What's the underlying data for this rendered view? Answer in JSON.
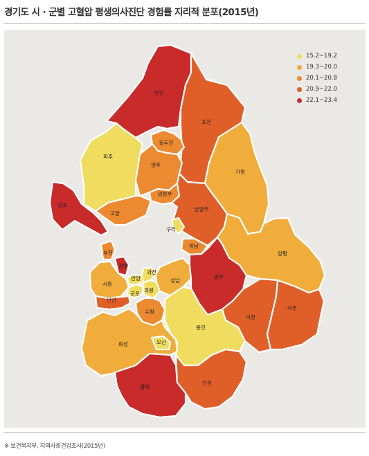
{
  "title": "경기도 시 · 군별 고혈압 평생의사진단 경험률 지리적 분포(2015년)",
  "source": "※ 보건복지부, 지역사회건강조사(2015년)",
  "legend": [
    {
      "label": "15.2~19.2",
      "color": "#f0dc5f"
    },
    {
      "label": "19.3~20.0",
      "color": "#f0ad3c"
    },
    {
      "label": "20.1~20.8",
      "color": "#ec8a32"
    },
    {
      "label": "20.9~22.0",
      "color": "#e05f29"
    },
    {
      "label": "22.1~23.4",
      "color": "#c92a2a"
    }
  ],
  "regions": [
    {
      "name": "연천",
      "class": "22.1~23.4",
      "color": "#c92a2a"
    },
    {
      "name": "포천",
      "class": "20.9~22.0",
      "color": "#e05f29"
    },
    {
      "name": "파주",
      "class": "15.2~19.2",
      "color": "#f0dc5f"
    },
    {
      "name": "동두천",
      "class": "20.1~20.8",
      "color": "#ec8a32"
    },
    {
      "name": "양주",
      "class": "20.1~20.8",
      "color": "#ec8a32"
    },
    {
      "name": "가평",
      "class": "19.3~20.0",
      "color": "#f0ad3c"
    },
    {
      "name": "의정부",
      "class": "20.1~20.8",
      "color": "#ec8a32"
    },
    {
      "name": "김포",
      "class": "22.1~23.4",
      "color": "#c92a2a"
    },
    {
      "name": "고양",
      "class": "20.1~20.8",
      "color": "#ec8a32"
    },
    {
      "name": "남양주",
      "class": "20.9~22.0",
      "color": "#e05f29"
    },
    {
      "name": "구리",
      "class": "15.2~19.2",
      "color": "#f0dc5f"
    },
    {
      "name": "하남",
      "class": "20.1~20.8",
      "color": "#ec8a32"
    },
    {
      "name": "양평",
      "class": "19.3~20.0",
      "color": "#f0ad3c"
    },
    {
      "name": "부천",
      "class": "20.1~20.8",
      "color": "#ec8a32"
    },
    {
      "name": "광명",
      "class": "22.1~23.4",
      "color": "#c92a2a"
    },
    {
      "name": "시흥",
      "class": "19.3~20.0",
      "color": "#f0ad3c"
    },
    {
      "name": "안양",
      "class": "15.2~19.2",
      "color": "#f0dc5f"
    },
    {
      "name": "과천",
      "class": "15.2~19.2",
      "color": "#f0dc5f"
    },
    {
      "name": "성남",
      "class": "19.3~20.0",
      "color": "#f0ad3c"
    },
    {
      "name": "광주",
      "class": "22.1~23.4",
      "color": "#c92a2a"
    },
    {
      "name": "군포",
      "class": "15.2~19.2",
      "color": "#f0dc5f"
    },
    {
      "name": "의왕",
      "class": "15.2~19.2",
      "color": "#f0dc5f"
    },
    {
      "name": "안산",
      "class": "20.9~22.0",
      "color": "#e05f29"
    },
    {
      "name": "수원",
      "class": "20.1~20.8",
      "color": "#ec8a32"
    },
    {
      "name": "이천",
      "class": "20.9~22.0",
      "color": "#e05f29"
    },
    {
      "name": "여주",
      "class": "20.9~22.0",
      "color": "#e05f29"
    },
    {
      "name": "용인",
      "class": "15.2~19.2",
      "color": "#f0dc5f"
    },
    {
      "name": "화성",
      "class": "19.3~20.0",
      "color": "#f0ad3c"
    },
    {
      "name": "오산",
      "class": "15.2~19.2",
      "color": "#f0dc5f"
    },
    {
      "name": "안성",
      "class": "20.9~22.0",
      "color": "#e05f29"
    },
    {
      "name": "평택",
      "class": "22.1~23.4",
      "color": "#c92a2a"
    }
  ]
}
